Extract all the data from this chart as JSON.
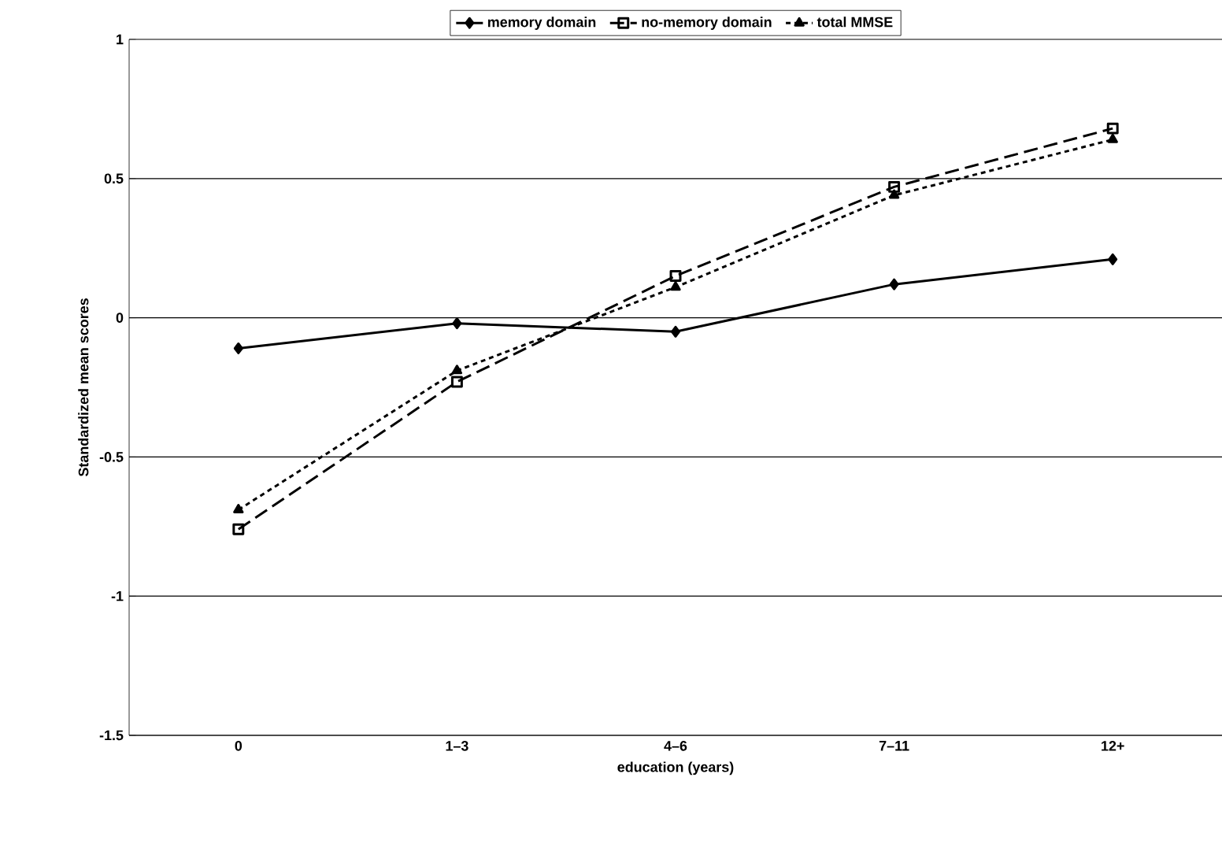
{
  "chart_data": {
    "type": "line",
    "xlabel": "education (years)",
    "ylabel": "Standardized mean scores",
    "categories": [
      "0",
      "1–3",
      "4–6",
      "7–11",
      "12+"
    ],
    "series": [
      {
        "name": "memory domain",
        "color": "#000000",
        "marker": "diamond",
        "line_style": "solid",
        "values": [
          -0.11,
          -0.02,
          -0.05,
          0.12,
          0.21
        ]
      },
      {
        "name": "no-memory domain",
        "color": "#000000",
        "marker": "square",
        "line_style": "dashed",
        "values": [
          -0.76,
          -0.23,
          0.15,
          0.47,
          0.68
        ]
      },
      {
        "name": "total MMSE",
        "color": "#000000",
        "marker": "triangle",
        "line_style": "dotted",
        "values": [
          -0.69,
          -0.19,
          0.11,
          0.44,
          0.64
        ]
      }
    ],
    "ylim": [
      -1.5,
      1
    ],
    "yticks": [
      -1.5,
      -1,
      -0.5,
      0,
      0.5,
      1
    ],
    "grid": "y",
    "legend": "top"
  }
}
